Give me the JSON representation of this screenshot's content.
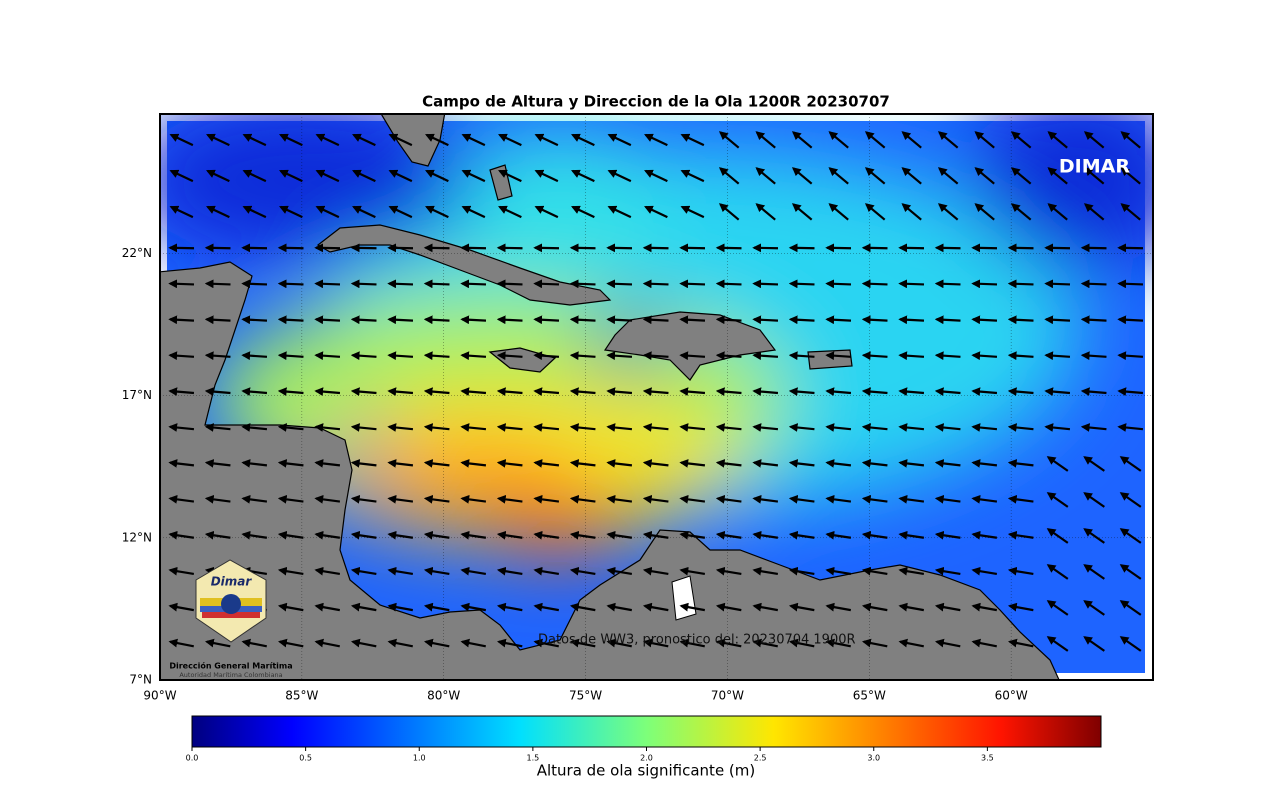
{
  "map": {
    "title": "Campo de Altura y Direccion de la Ola 1200R 20230707",
    "watermark": "DIMAR",
    "note": "Datos de WW3, pronostico del: 20230704 1900R",
    "lonlim": [
      -90,
      -55
    ],
    "latlim": [
      7,
      26.9
    ],
    "grid": true,
    "lat_ticks": [
      {
        "value": 7,
        "label": "7°N"
      },
      {
        "value": 12,
        "label": "12°N"
      },
      {
        "value": 17,
        "label": "17°N"
      },
      {
        "value": 22,
        "label": "22°N"
      }
    ],
    "lon_ticks": [
      {
        "value": -90,
        "label": "90°W"
      },
      {
        "value": -85,
        "label": "85°W"
      },
      {
        "value": -80,
        "label": "80°W"
      },
      {
        "value": -75,
        "label": "75°W"
      },
      {
        "value": -70,
        "label": "70°W"
      },
      {
        "value": -65,
        "label": "65°W"
      },
      {
        "value": -60,
        "label": "60°W"
      }
    ]
  },
  "colorbar": {
    "label": "Altura de ola significante (m)",
    "lim": [
      0,
      4
    ],
    "ticks": [
      {
        "value": 0,
        "label": "0.0"
      },
      0.5,
      {
        "value": 1,
        "label": "1.0"
      },
      1.5,
      {
        "value": 2,
        "label": "2.0"
      },
      2.5,
      {
        "value": 3,
        "label": "3.0"
      },
      3.5
    ]
  },
  "logo": {
    "name": "Dimar",
    "org": "Dirección General Marítima",
    "subtitle": "Autoridad Marítima Colombiana"
  }
}
